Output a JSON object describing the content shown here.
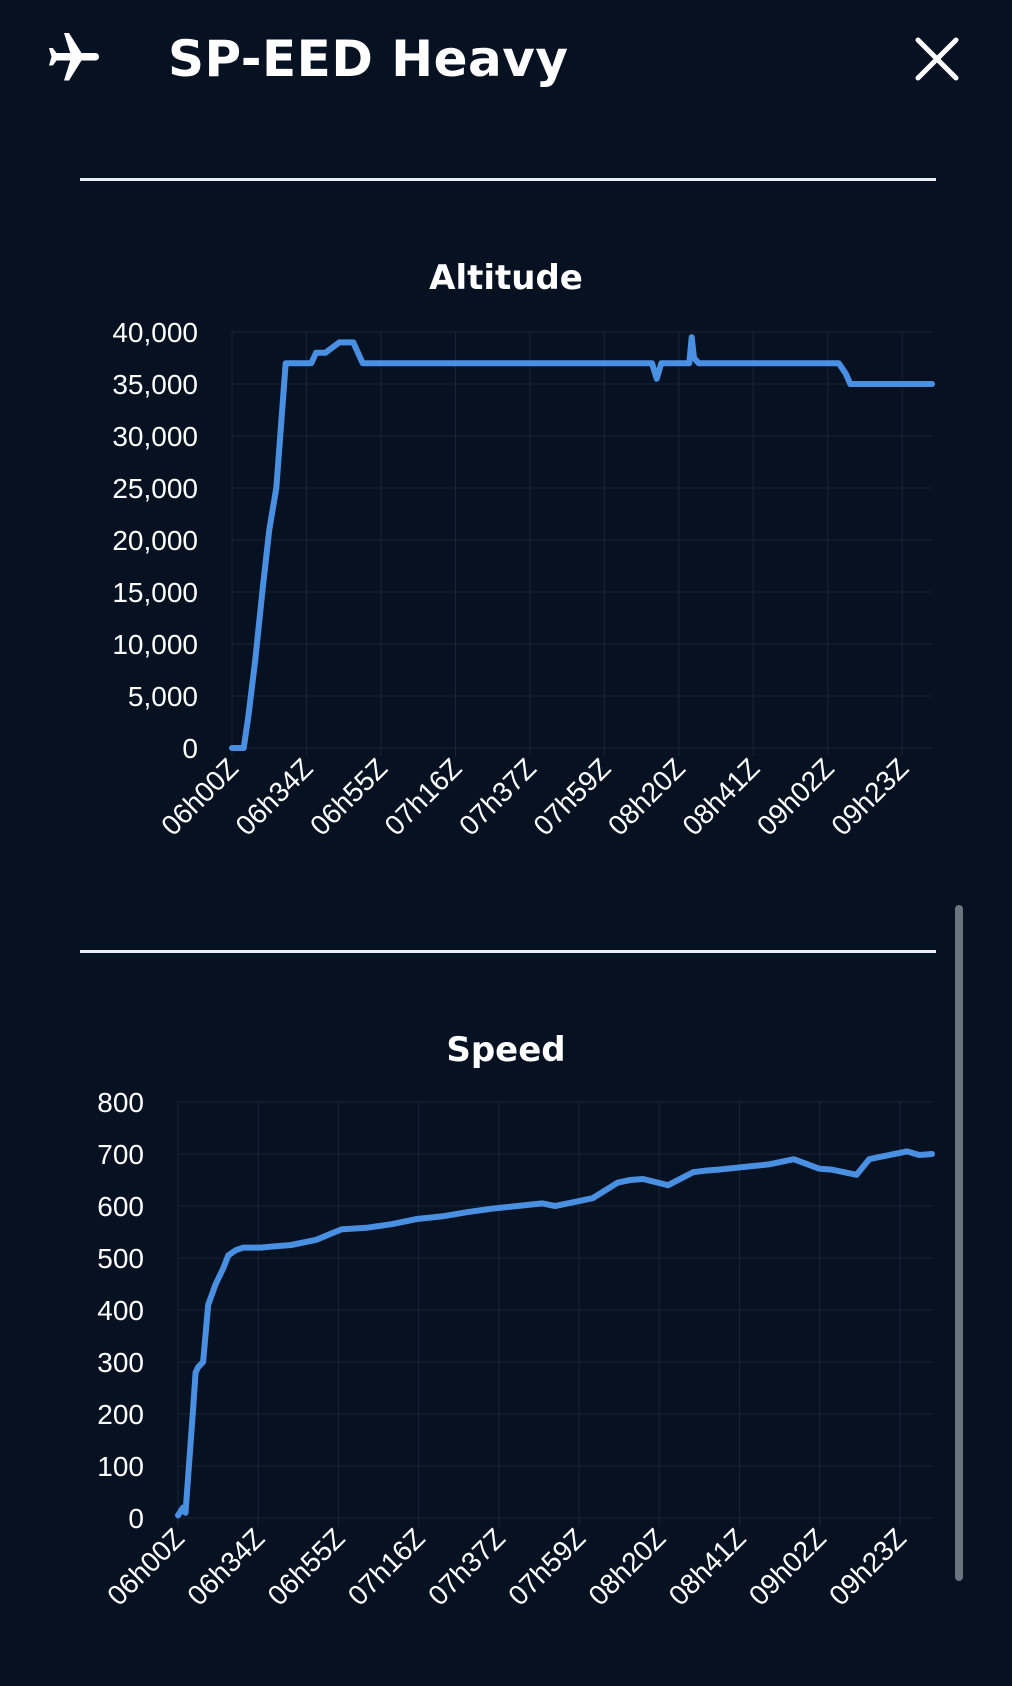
{
  "header": {
    "title": "SP-EED Heavy",
    "plane_icon": "airplane-icon",
    "close_icon": "close-icon"
  },
  "colors": {
    "background": "#061122",
    "line": "#4a90e2",
    "grid": "#1a2636",
    "divider": "#e9edf3"
  },
  "chart_data": [
    {
      "type": "line",
      "title": "Altitude",
      "xlabel": "",
      "ylabel": "",
      "x_ticks": [
        "06h00Z",
        "06h34Z",
        "06h55Z",
        "07h16Z",
        "07h37Z",
        "07h59Z",
        "08h20Z",
        "08h41Z",
        "09h02Z",
        "09h23Z"
      ],
      "y_ticks": [
        "0",
        "5,000",
        "10,000",
        "15,000",
        "20,000",
        "25,000",
        "30,000",
        "35,000",
        "40,000"
      ],
      "ylim": [
        0,
        40000
      ],
      "grid": true,
      "series": [
        {
          "x": [
            0,
            0.3,
            0.4,
            0.5,
            0.7,
            1.0,
            1.3,
            1.6,
            1.9,
            2.1,
            2.3,
            2.6,
            2.8,
            3.4,
            3.6,
            4.0,
            4.6,
            5.0,
            5.2,
            5.4,
            5.6,
            5.8,
            5.85,
            6.5,
            7.5,
            8.5,
            9.5,
            10.5,
            11.5,
            12.5,
            13.5,
            14.5,
            15.5,
            16.5,
            17.5,
            18.0,
            18.2,
            18.4,
            18.6,
            18.8,
            19.0,
            19.3,
            19.6,
            19.7,
            19.8,
            20.0,
            20.5,
            21.5,
            22.5,
            23.5,
            24.5,
            25.5,
            26.0,
            26.3,
            26.5,
            26.7,
            27.0,
            28.0,
            29.0,
            30.0
          ],
          "values": [
            0,
            0,
            0,
            0,
            3000,
            8500,
            15000,
            21000,
            25000,
            31000,
            37000,
            37000,
            37000,
            37000,
            38000,
            38000,
            39000,
            39000,
            39000,
            38000,
            37000,
            37000,
            37000,
            37000,
            37000,
            37000,
            37000,
            37000,
            37000,
            37000,
            37000,
            37000,
            37000,
            37000,
            37000,
            37000,
            35500,
            37000,
            37000,
            37000,
            37000,
            37000,
            37000,
            39500,
            37500,
            37000,
            37000,
            37000,
            37000,
            37000,
            37000,
            37000,
            37000,
            36000,
            35000,
            35000,
            35000,
            35000,
            35000,
            35000
          ]
        }
      ]
    },
    {
      "type": "line",
      "title": "Speed",
      "xlabel": "",
      "ylabel": "",
      "x_ticks": [
        "06h00Z",
        "06h34Z",
        "06h55Z",
        "07h16Z",
        "07h37Z",
        "07h59Z",
        "08h20Z",
        "08h41Z",
        "09h02Z",
        "09h23Z"
      ],
      "y_ticks": [
        "0",
        "100",
        "200",
        "300",
        "400",
        "500",
        "600",
        "700",
        "800"
      ],
      "ylim": [
        0,
        800
      ],
      "grid": true,
      "series": [
        {
          "x": [
            0,
            0.2,
            0.3,
            0.6,
            0.7,
            0.8,
            1.0,
            1.2,
            1.5,
            1.8,
            2.0,
            2.3,
            2.6,
            3.0,
            3.3,
            3.7,
            4.5,
            5.5,
            6.5,
            7.5,
            8.5,
            9.5,
            10.5,
            11.5,
            12.5,
            13.5,
            14.5,
            15.0,
            15.5,
            16.5,
            17.5,
            18.0,
            18.5,
            19.5,
            20.5,
            21.0,
            21.5,
            22.5,
            23.5,
            24.5,
            25.5,
            26.0,
            26.5,
            27.0,
            27.5,
            28.0,
            28.5,
            29.0,
            29.5,
            30.0
          ],
          "values": [
            5,
            20,
            10,
            210,
            280,
            290,
            300,
            410,
            450,
            480,
            505,
            515,
            520,
            520,
            520,
            522,
            525,
            535,
            555,
            558,
            565,
            575,
            580,
            588,
            595,
            600,
            605,
            600,
            605,
            615,
            645,
            650,
            652,
            640,
            665,
            668,
            670,
            675,
            680,
            690,
            672,
            670,
            665,
            660,
            690,
            695,
            700,
            705,
            698,
            700
          ]
        }
      ]
    }
  ]
}
